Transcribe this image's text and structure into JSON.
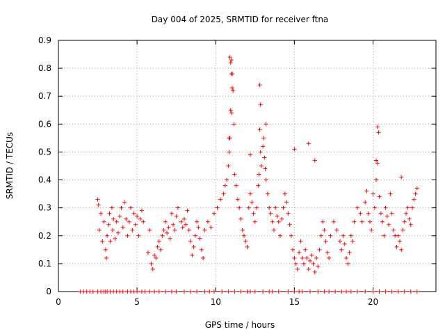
{
  "chart_data": {
    "type": "scatter",
    "title": "Day 004 of 2025, SRMTID for receiver ftna",
    "xlabel": "GPS time / hours",
    "ylabel": "SRMTID / TECUs",
    "xlim": [
      0,
      24
    ],
    "ylim": [
      0,
      0.9
    ],
    "xticks": [
      0,
      5,
      10,
      15,
      20
    ],
    "yticks": [
      0,
      0.1,
      0.2,
      0.3,
      0.4,
      0.5,
      0.6,
      0.7,
      0.8,
      0.9
    ],
    "grid": true,
    "marker": "plus",
    "color": "#ff0000",
    "series": [
      {
        "name": "SRMTID",
        "x": [
          1.4,
          1.6,
          1.8,
          2.0,
          2.2,
          2.5,
          2.7,
          2.9,
          3.0,
          3.1,
          3.3,
          3.5,
          3.7,
          3.9,
          4.1,
          4.4,
          4.6,
          4.8,
          5.0,
          5.3,
          5.5,
          5.8,
          6.1,
          6.4,
          6.8,
          7.2,
          7.5,
          8.0,
          8.4,
          8.8,
          9.3,
          9.6,
          9.9,
          10.4,
          10.8,
          11.2,
          11.6,
          12.0,
          12.2,
          12.5,
          13.0,
          13.4,
          13.6,
          14.0,
          14.6,
          15.0,
          15.3,
          15.5,
          16.0,
          16.5,
          16.9,
          17.2,
          17.6,
          18.0,
          18.3,
          18.6,
          19.0,
          19.5,
          20.0,
          20.4,
          20.8,
          21.2,
          21.6,
          22.0,
          22.4,
          22.8,
          2.5,
          2.55,
          2.6,
          2.7,
          2.8,
          2.9,
          3.0,
          3.05,
          3.1,
          3.2,
          3.25,
          3.3,
          3.4,
          3.45,
          3.5,
          3.6,
          3.7,
          3.8,
          3.9,
          4.0,
          4.1,
          4.2,
          4.3,
          4.4,
          4.5,
          4.6,
          4.7,
          4.8,
          4.9,
          5.0,
          5.1,
          5.2,
          5.3,
          5.4,
          5.7,
          5.8,
          5.9,
          6.0,
          6.1,
          6.2,
          6.3,
          6.4,
          6.5,
          6.6,
          6.7,
          6.8,
          6.9,
          7.0,
          7.1,
          7.2,
          7.3,
          7.4,
          7.5,
          7.6,
          7.8,
          7.9,
          8.0,
          8.1,
          8.2,
          8.3,
          8.4,
          8.5,
          8.6,
          8.7,
          8.8,
          8.9,
          9.0,
          9.1,
          9.2,
          9.3,
          9.5,
          9.7,
          9.9,
          10.1,
          10.3,
          10.5,
          10.6,
          10.7,
          10.8,
          10.85,
          10.9,
          10.95,
          11.0,
          11.05,
          11.1,
          11.15,
          11.2,
          11.3,
          11.4,
          11.5,
          11.6,
          11.7,
          11.8,
          11.9,
          12.0,
          12.1,
          12.2,
          12.3,
          12.4,
          12.5,
          12.6,
          12.7,
          12.75,
          12.8,
          12.85,
          12.9,
          13.0,
          13.05,
          13.1,
          13.15,
          13.2,
          13.3,
          13.4,
          13.5,
          13.6,
          13.7,
          13.8,
          13.9,
          14.0,
          14.1,
          14.2,
          14.3,
          14.4,
          14.5,
          14.6,
          14.7,
          14.8,
          14.9,
          15.0,
          15.1,
          15.2,
          15.3,
          15.4,
          15.5,
          15.6,
          15.7,
          15.8,
          15.9,
          16.0,
          16.1,
          16.2,
          16.3,
          16.4,
          16.5,
          16.6,
          16.7,
          16.8,
          16.9,
          17.0,
          17.1,
          17.2,
          17.3,
          17.5,
          17.7,
          17.9,
          18.0,
          18.1,
          18.2,
          18.3,
          18.4,
          18.5,
          18.6,
          18.7,
          18.8,
          19.0,
          19.2,
          19.3,
          19.5,
          19.6,
          19.7,
          19.8,
          19.9,
          20.0,
          20.1,
          20.2,
          20.3,
          20.4,
          20.5,
          20.6,
          20.7,
          20.8,
          20.9,
          21.0,
          21.1,
          21.2,
          21.3,
          21.4,
          21.5,
          21.6,
          21.7,
          21.8,
          21.9,
          22.0,
          22.1,
          22.2,
          22.3,
          22.4,
          22.5,
          22.6,
          22.7,
          22.8,
          10.9,
          10.95,
          11.0,
          11.05,
          10.85,
          11.0,
          12.8,
          12.85,
          13.2,
          15.0,
          15.9,
          16.3,
          20.3,
          20.35,
          20.2,
          21.8,
          12.2
        ],
        "y": [
          0,
          0,
          0,
          0,
          0,
          0,
          0,
          0,
          0,
          0,
          0,
          0,
          0,
          0,
          0,
          0,
          0,
          0,
          0,
          0,
          0,
          0,
          0,
          0,
          0,
          0,
          0,
          0,
          0,
          0,
          0,
          0,
          0,
          0,
          0,
          0,
          0,
          0,
          0,
          0,
          0,
          0,
          0,
          0,
          0,
          0,
          0,
          0,
          0,
          0,
          0,
          0,
          0,
          0,
          0,
          0,
          0,
          0,
          0,
          0,
          0,
          0,
          0,
          0,
          0,
          0,
          0.33,
          0.31,
          0.22,
          0.28,
          0.18,
          0.25,
          0.15,
          0.12,
          0.2,
          0.24,
          0.28,
          0.18,
          0.3,
          0.22,
          0.26,
          0.19,
          0.25,
          0.21,
          0.27,
          0.3,
          0.23,
          0.32,
          0.26,
          0.2,
          0.25,
          0.3,
          0.22,
          0.28,
          0.24,
          0.27,
          0.2,
          0.26,
          0.29,
          0.25,
          0.14,
          0.22,
          0.1,
          0.08,
          0.13,
          0.12,
          0.16,
          0.18,
          0.15,
          0.2,
          0.22,
          0.25,
          0.21,
          0.23,
          0.19,
          0.28,
          0.24,
          0.22,
          0.27,
          0.3,
          0.25,
          0.23,
          0.26,
          0.24,
          0.29,
          0.22,
          0.18,
          0.13,
          0.16,
          0.2,
          0.25,
          0.23,
          0.19,
          0.15,
          0.12,
          0.22,
          0.25,
          0.23,
          0.28,
          0.3,
          0.33,
          0.35,
          0.38,
          0.4,
          0.45,
          0.5,
          0.55,
          0.65,
          0.83,
          0.78,
          0.72,
          0.6,
          0.42,
          0.38,
          0.33,
          0.3,
          0.26,
          0.22,
          0.2,
          0.18,
          0.16,
          0.3,
          0.35,
          0.32,
          0.28,
          0.25,
          0.3,
          0.38,
          0.42,
          0.58,
          0.5,
          0.45,
          0.52,
          0.55,
          0.48,
          0.44,
          0.4,
          0.35,
          0.3,
          0.28,
          0.25,
          0.22,
          0.3,
          0.27,
          0.25,
          0.2,
          0.26,
          0.3,
          0.35,
          0.32,
          0.28,
          0.24,
          0.2,
          0.15,
          0.12,
          0.1,
          0.08,
          0.14,
          0.18,
          0.12,
          0.1,
          0.15,
          0.12,
          0.08,
          0.11,
          0.13,
          0.1,
          0.07,
          0.12,
          0.09,
          0.15,
          0.2,
          0.25,
          0.22,
          0.18,
          0.14,
          0.12,
          0.2,
          0.25,
          0.22,
          0.18,
          0.15,
          0.2,
          0.17,
          0.12,
          0.1,
          0.14,
          0.2,
          0.18,
          0.25,
          0.3,
          0.28,
          0.25,
          0.32,
          0.36,
          0.28,
          0.25,
          0.22,
          0.35,
          0.3,
          0.4,
          0.46,
          0.34,
          0.28,
          0.25,
          0.2,
          0.3,
          0.27,
          0.24,
          0.35,
          0.28,
          0.22,
          0.2,
          0.16,
          0.2,
          0.18,
          0.15,
          0.22,
          0.25,
          0.28,
          0.3,
          0.26,
          0.24,
          0.3,
          0.33,
          0.35,
          0.37,
          0.84,
          0.82,
          0.78,
          0.73,
          0.55,
          0.64,
          0.74,
          0.67,
          0.6,
          0.51,
          0.53,
          0.47,
          0.59,
          0.57,
          0.47,
          0.41,
          0.49
        ]
      }
    ]
  }
}
